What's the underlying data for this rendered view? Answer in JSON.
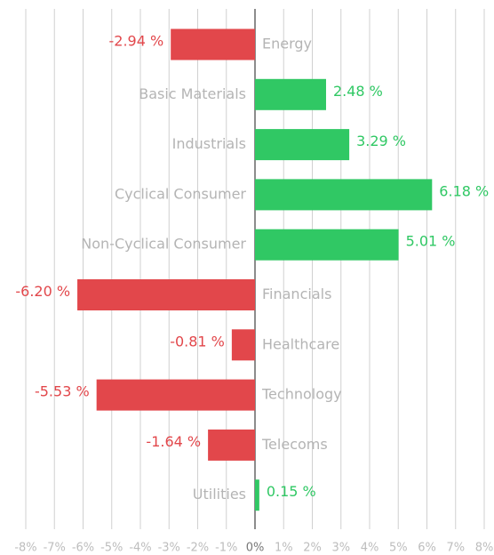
{
  "chart_data": {
    "type": "bar",
    "orientation": "horizontal",
    "categories": [
      "Energy",
      "Basic Materials",
      "Industrials",
      "Cyclical Consumer",
      "Non-Cyclical Consumer",
      "Financials",
      "Healthcare",
      "Technology",
      "Telecoms",
      "Utilities"
    ],
    "values": [
      -2.94,
      2.48,
      3.29,
      6.18,
      5.01,
      -6.2,
      -0.81,
      -5.53,
      -1.64,
      0.15
    ],
    "value_labels": [
      "-2.94 %",
      "2.48 %",
      "3.29 %",
      "6.18 %",
      "5.01 %",
      "-6.20 %",
      "-0.81 %",
      "-5.53 %",
      "-1.64 %",
      "0.15 %"
    ],
    "positive_color": "#30c864",
    "negative_color": "#e2474b",
    "xlim": [
      -8,
      8
    ],
    "xticks": [
      {
        "value": -8,
        "label": "-8%"
      },
      {
        "value": -7,
        "label": "-7%"
      },
      {
        "value": -6,
        "label": "-6%"
      },
      {
        "value": -5,
        "label": "-5%"
      },
      {
        "value": -4,
        "label": "-4%"
      },
      {
        "value": -3,
        "label": "-3%"
      },
      {
        "value": -2,
        "label": "-2%"
      },
      {
        "value": -1,
        "label": "-1%"
      },
      {
        "value": 0,
        "label": "0%"
      },
      {
        "value": 1,
        "label": "1%"
      },
      {
        "value": 2,
        "label": "2%"
      },
      {
        "value": 3,
        "label": "3%"
      },
      {
        "value": 4,
        "label": "4%"
      },
      {
        "value": 5,
        "label": "5%"
      },
      {
        "value": 6,
        "label": "6%"
      },
      {
        "value": 7,
        "label": "7%"
      },
      {
        "value": 8,
        "label": "8%"
      }
    ],
    "grid": true
  }
}
